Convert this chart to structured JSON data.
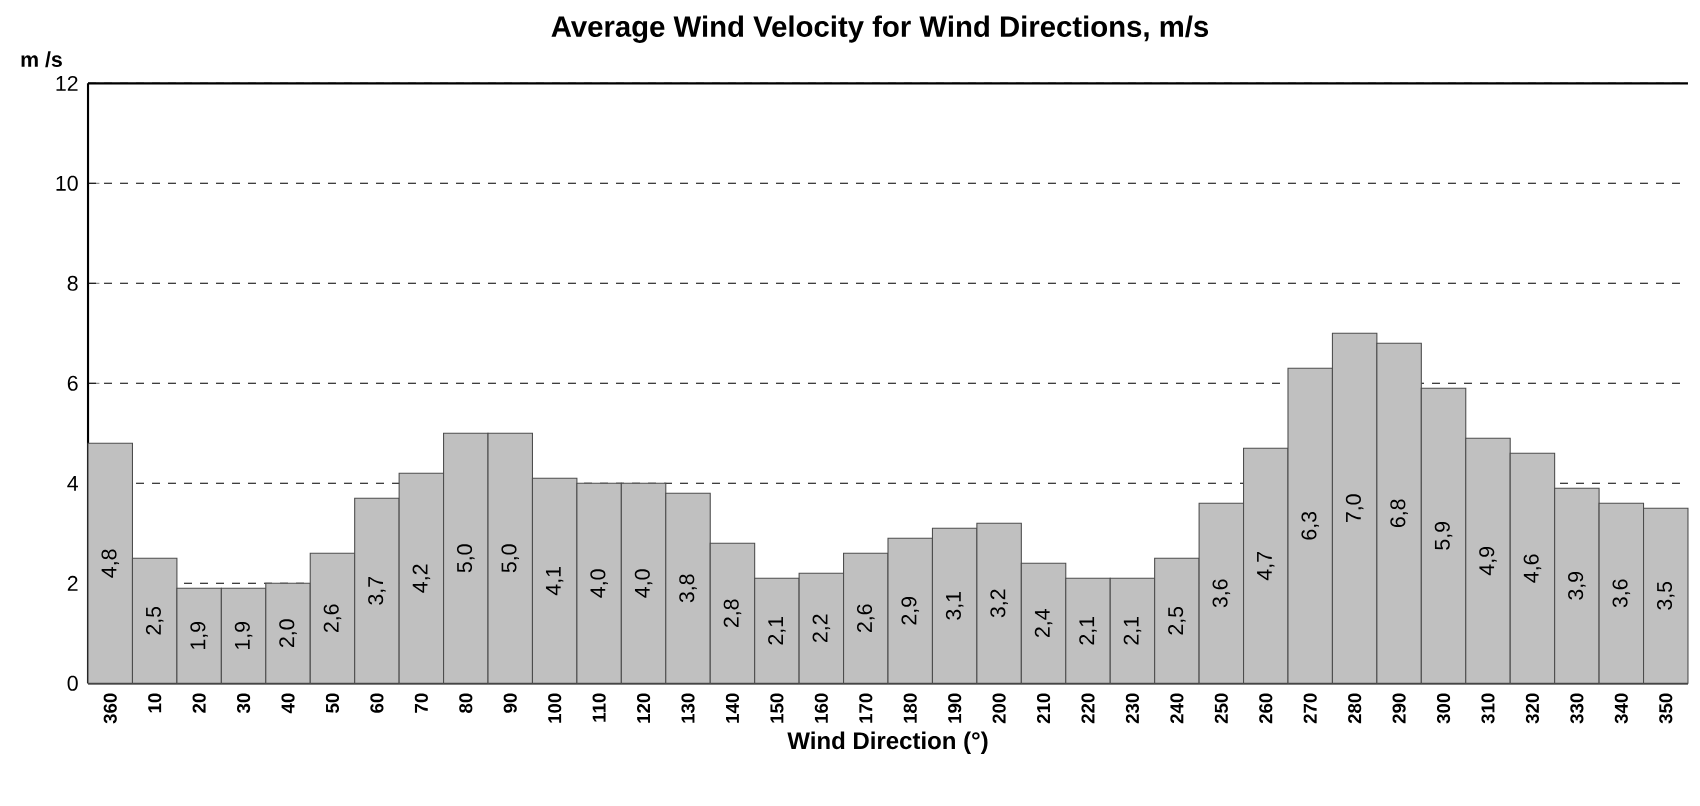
{
  "chart_data": {
    "type": "bar",
    "title": "Average Wind Velocity for Wind Directions, m/s",
    "xlabel": "Wind Direction (°)",
    "ylabel": "m /s",
    "categories": [
      "360",
      "10",
      "20",
      "30",
      "40",
      "50",
      "60",
      "70",
      "80",
      "90",
      "100",
      "110",
      "120",
      "130",
      "140",
      "150",
      "160",
      "170",
      "180",
      "190",
      "200",
      "210",
      "220",
      "230",
      "240",
      "250",
      "260",
      "270",
      "280",
      "290",
      "300",
      "310",
      "320",
      "330",
      "340",
      "350"
    ],
    "values": [
      4.8,
      2.5,
      1.9,
      1.9,
      2.0,
      2.6,
      3.7,
      4.2,
      5.0,
      5.0,
      4.1,
      4.0,
      4.0,
      3.8,
      2.8,
      2.1,
      2.2,
      2.6,
      2.9,
      3.1,
      3.2,
      2.4,
      2.1,
      2.1,
      2.5,
      3.6,
      4.7,
      6.3,
      7.0,
      6.8,
      5.9,
      4.9,
      4.6,
      3.9,
      3.6,
      3.5
    ],
    "value_labels": [
      "4,8",
      "2,5",
      "1,9",
      "1,9",
      "2,0",
      "2,6",
      "3,7",
      "4,2",
      "5,0",
      "5,0",
      "4,1",
      "4,0",
      "4,0",
      "3,8",
      "2,8",
      "2,1",
      "2,2",
      "2,6",
      "2,9",
      "3,1",
      "3,2",
      "2,4",
      "2,1",
      "2,1",
      "2,5",
      "3,6",
      "4,7",
      "6,3",
      "7,0",
      "6,8",
      "5,9",
      "4,9",
      "4,6",
      "3,9",
      "3,6",
      "3,5"
    ],
    "color": "#c0c0c0",
    "ylim": [
      0,
      12
    ],
    "yticks": [
      0,
      2,
      4,
      6,
      8,
      10,
      12
    ],
    "grid": "y"
  }
}
